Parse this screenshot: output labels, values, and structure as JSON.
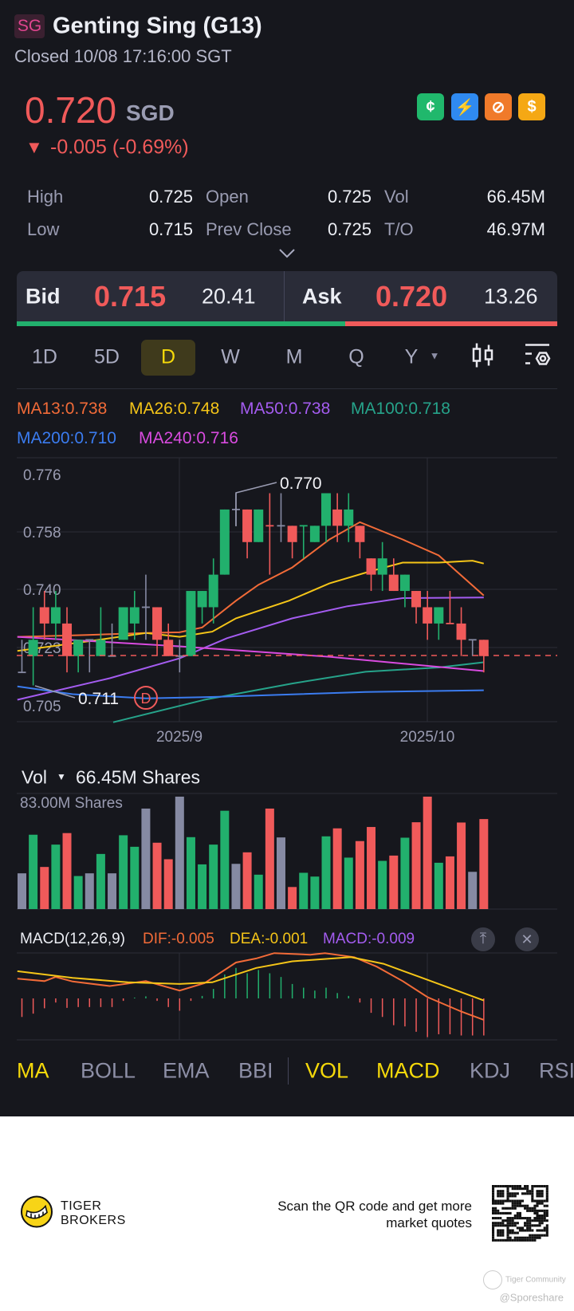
{
  "header": {
    "market_badge": "SG",
    "title": "Genting Sing (G13)",
    "status": "Closed 10/08 17:16:00 SGT"
  },
  "quote": {
    "price": "0.720",
    "currency": "SGD",
    "change_arrow": "▼",
    "change": "-0.005 (-0.69%)",
    "feature_icons": [
      "cash-hand-icon",
      "lightning-1-icon",
      "no-short-icon",
      "dollar-icon"
    ]
  },
  "stats": [
    {
      "label": "High",
      "value": "0.725"
    },
    {
      "label": "Open",
      "value": "0.725"
    },
    {
      "label": "Vol",
      "value": "66.45M"
    },
    {
      "label": "Low",
      "value": "0.715"
    },
    {
      "label": "Prev Close",
      "value": "0.725"
    },
    {
      "label": "T/O",
      "value": "46.97M"
    }
  ],
  "bidask": {
    "bid_label": "Bid",
    "bid_price": "0.715",
    "bid_size": "20.41",
    "ask_label": "Ask",
    "ask_price": "0.720",
    "ask_size": "13.26",
    "bid_share": 0.607
  },
  "timeframes": [
    "1D",
    "5D",
    "D",
    "W",
    "M",
    "Q",
    "Y"
  ],
  "active_timeframe": "D",
  "ma_legend": [
    {
      "text": "MA13:0.738",
      "color": "#f26b38"
    },
    {
      "text": "MA26:0.748",
      "color": "#f5c518"
    },
    {
      "text": "MA50:0.738",
      "color": "#a45cf0"
    },
    {
      "text": "MA100:0.718",
      "color": "#26a38a"
    },
    {
      "text": "MA200:0.710",
      "color": "#3b7cf0"
    },
    {
      "text": "MA240:0.716",
      "color": "#d94be0"
    }
  ],
  "colors": {
    "up": "#22b06d",
    "down": "#f05a5a",
    "flat": "#868aa3"
  },
  "chart_data": [
    {
      "type": "candlestick",
      "ylim": [
        0.7,
        0.781
      ],
      "yticks": [
        {
          "value": 0.7759,
          "label": "0.776"
        },
        {
          "value": 0.7582,
          "label": "0.758"
        },
        {
          "value": 0.7405,
          "label": "0.740"
        },
        {
          "value": 0.7228,
          "label": "0.723"
        },
        {
          "value": 0.7051,
          "label": "0.705"
        }
      ],
      "xticks": [
        {
          "index": 15,
          "label": "2025/9"
        },
        {
          "index": 37,
          "label": "2025/10"
        }
      ],
      "last_price": 0.72,
      "max_label": "0.770",
      "min_label": "0.711",
      "marker_label": "D",
      "candles": [
        [
          0.715,
          0.725,
          0.715,
          0.715,
          "flat"
        ],
        [
          0.72,
          0.735,
          0.711,
          0.725,
          "up"
        ],
        [
          0.735,
          0.74,
          0.725,
          0.73,
          "down"
        ],
        [
          0.73,
          0.74,
          0.725,
          0.735,
          "up"
        ],
        [
          0.73,
          0.735,
          0.715,
          0.72,
          "down"
        ],
        [
          0.72,
          0.725,
          0.715,
          0.725,
          "up"
        ],
        [
          0.725,
          0.725,
          0.715,
          0.725,
          "flat"
        ],
        [
          0.72,
          0.735,
          0.72,
          0.725,
          "up"
        ],
        [
          0.72,
          0.73,
          0.72,
          0.72,
          "flat"
        ],
        [
          0.725,
          0.735,
          0.725,
          0.735,
          "up"
        ],
        [
          0.73,
          0.74,
          0.725,
          0.735,
          "up"
        ],
        [
          0.735,
          0.745,
          0.725,
          0.735,
          "flat"
        ],
        [
          0.735,
          0.735,
          0.72,
          0.725,
          "down"
        ],
        [
          0.725,
          0.73,
          0.72,
          0.72,
          "down"
        ],
        [
          0.72,
          0.725,
          0.715,
          0.72,
          "flat"
        ],
        [
          0.72,
          0.74,
          0.72,
          0.74,
          "up"
        ],
        [
          0.735,
          0.74,
          0.73,
          0.74,
          "up"
        ],
        [
          0.735,
          0.75,
          0.73,
          0.745,
          "up"
        ],
        [
          0.745,
          0.765,
          0.745,
          0.765,
          "up"
        ],
        [
          0.765,
          0.77,
          0.76,
          0.765,
          "flat"
        ],
        [
          0.765,
          0.765,
          0.75,
          0.755,
          "down"
        ],
        [
          0.755,
          0.765,
          0.755,
          0.765,
          "up"
        ],
        [
          0.76,
          0.77,
          0.745,
          0.76,
          "down"
        ],
        [
          0.76,
          0.77,
          0.755,
          0.76,
          "flat"
        ],
        [
          0.76,
          0.76,
          0.75,
          0.755,
          "down"
        ],
        [
          0.76,
          0.76,
          0.75,
          0.76,
          "up"
        ],
        [
          0.755,
          0.76,
          0.755,
          0.76,
          "up"
        ],
        [
          0.76,
          0.77,
          0.755,
          0.77,
          "up"
        ],
        [
          0.765,
          0.77,
          0.755,
          0.76,
          "down"
        ],
        [
          0.76,
          0.77,
          0.755,
          0.765,
          "up"
        ],
        [
          0.76,
          0.76,
          0.75,
          0.755,
          "down"
        ],
        [
          0.75,
          0.75,
          0.74,
          0.745,
          "down"
        ],
        [
          0.745,
          0.755,
          0.74,
          0.75,
          "up"
        ],
        [
          0.745,
          0.75,
          0.74,
          0.74,
          "down"
        ],
        [
          0.74,
          0.745,
          0.735,
          0.745,
          "up"
        ],
        [
          0.74,
          0.74,
          0.73,
          0.735,
          "down"
        ],
        [
          0.735,
          0.74,
          0.725,
          0.73,
          "down"
        ],
        [
          0.73,
          0.735,
          0.725,
          0.735,
          "up"
        ],
        [
          0.73,
          0.74,
          0.73,
          0.73,
          "down"
        ],
        [
          0.73,
          0.735,
          0.72,
          0.725,
          "down"
        ],
        [
          0.725,
          0.725,
          0.72,
          0.725,
          "flat"
        ],
        [
          0.725,
          0.725,
          0.715,
          0.72,
          "down"
        ]
      ],
      "moving_averages": [
        {
          "name": "MA13",
          "points": [
            [
              0.6,
              0.7259
            ],
            [
              6.8,
              0.7265
            ],
            [
              12,
              0.7271
            ],
            [
              15,
              0.7273
            ],
            [
              17,
              0.7288
            ],
            [
              20,
              0.737
            ],
            [
              22,
              0.7419
            ],
            [
              25,
              0.7472
            ],
            [
              28.3,
              0.7558
            ],
            [
              31,
              0.7611
            ],
            [
              34.8,
              0.7558
            ],
            [
              38,
              0.7509
            ],
            [
              42,
              0.7386
            ]
          ]
        },
        {
          "name": "MA26",
          "points": [
            [
              0.6,
              0.7216
            ],
            [
              6.8,
              0.7245
            ],
            [
              12,
              0.7271
            ],
            [
              15,
              0.7259
            ],
            [
              17.9,
              0.7275
            ],
            [
              20,
              0.7316
            ],
            [
              24.7,
              0.737
            ],
            [
              28.3,
              0.7423
            ],
            [
              31.9,
              0.746
            ],
            [
              34.8,
              0.7487
            ],
            [
              38,
              0.7487
            ],
            [
              41,
              0.7493
            ],
            [
              42,
              0.7484
            ]
          ]
        },
        {
          "name": "MA50",
          "points": [
            [
              0.6,
              0.7066
            ],
            [
              8.8,
              0.7132
            ],
            [
              15,
              0.7193
            ],
            [
              19.2,
              0.7255
            ],
            [
              25,
              0.7316
            ],
            [
              29.9,
              0.7353
            ],
            [
              34.8,
              0.7378
            ],
            [
              42,
              0.738
            ]
          ]
        },
        {
          "name": "MA100",
          "points": [
            [
              9.1,
              0.6997
            ],
            [
              17.2,
              0.7066
            ],
            [
              25,
              0.7116
            ],
            [
              31.5,
              0.7152
            ],
            [
              38,
              0.7165
            ],
            [
              42,
              0.7181
            ]
          ]
        },
        {
          "name": "MA200",
          "points": [
            [
              0.6,
              0.7107
            ],
            [
              5.5,
              0.7083
            ],
            [
              12,
              0.707
            ],
            [
              18.5,
              0.7075
            ],
            [
              31.5,
              0.709
            ],
            [
              42,
              0.7095
            ]
          ]
        },
        {
          "name": "MA240",
          "points": [
            [
              0.6,
              0.7259
            ],
            [
              15,
              0.723
            ],
            [
              28.3,
              0.7198
            ],
            [
              42,
              0.7154
            ]
          ]
        }
      ]
    },
    {
      "type": "bar",
      "title": "Vol",
      "value_label": "66.45M Shares",
      "max_label": "83.00M Shares",
      "ylim": [
        0,
        83
      ],
      "unit": "M Shares",
      "values": [
        26.4,
        54.9,
        31.1,
        47.6,
        56.1,
        24.4,
        26.4,
        40.7,
        26.4,
        54.5,
        46.0,
        74.2,
        49.0,
        36.8,
        83.0,
        53.1,
        33.0,
        47.6,
        72.6,
        33.4,
        41.9,
        25.4,
        74.2,
        52.9,
        16.3,
        26.8,
        24.0,
        53.7,
        59.6,
        38.0,
        50.2,
        60.6,
        35.6,
        39.5,
        52.7,
        64.1,
        83.0,
        34.2,
        38.9,
        63.9,
        27.5,
        66.45
      ]
    },
    {
      "type": "macd",
      "title": "MACD(12,26,9)",
      "dif_label": "DIF:-0.005",
      "dea_label": "DEA:-0.001",
      "macd_label": "MACD:-0.009",
      "dif_color": "#f26b38",
      "dea_color": "#f5c518",
      "macd_color": "#a45cf0",
      "ylim": [
        -0.0102,
        0.011
      ],
      "dif": [
        [
          0.6,
          0.0048
        ],
        [
          3,
          0.0042
        ],
        [
          4,
          0.0052
        ],
        [
          5.5,
          0.0041
        ],
        [
          8.8,
          0.003
        ],
        [
          12,
          0.0042
        ],
        [
          15,
          0.0019
        ],
        [
          17.2,
          0.0037
        ],
        [
          20,
          0.0087
        ],
        [
          21.8,
          0.0097
        ],
        [
          23.4,
          0.011
        ],
        [
          26.6,
          0.0106
        ],
        [
          27.9,
          0.011
        ],
        [
          30.5,
          0.01
        ],
        [
          32.5,
          0.0077
        ],
        [
          34.8,
          0.0042
        ],
        [
          37,
          0.0003
        ],
        [
          40,
          -0.0032
        ],
        [
          42,
          -0.0052
        ]
      ],
      "dea": [
        [
          0.6,
          0.0066
        ],
        [
          5.5,
          0.005
        ],
        [
          10.4,
          0.0039
        ],
        [
          15,
          0.0035
        ],
        [
          17.9,
          0.0039
        ],
        [
          21.8,
          0.0074
        ],
        [
          25,
          0.009
        ],
        [
          30.2,
          0.01
        ],
        [
          33.1,
          0.0084
        ],
        [
          36.3,
          0.0052
        ],
        [
          42,
          -0.0005
        ]
      ],
      "histogram": [
        -0.0045,
        -0.0037,
        -0.0024,
        -0.001,
        -0.0023,
        -0.0021,
        -0.0021,
        -0.0021,
        -0.0021,
        -0.0006,
        0.0002,
        0.0005,
        -0.0006,
        -0.0021,
        -0.003,
        -0.0006,
        0.0006,
        0.0023,
        0.0058,
        0.0074,
        0.0061,
        0.0069,
        0.0061,
        0.0052,
        0.0035,
        0.0026,
        0.0019,
        0.0026,
        0.0013,
        0.0006,
        -0.001,
        -0.0035,
        -0.0045,
        -0.0065,
        -0.0068,
        -0.0081,
        -0.0094,
        -0.0087,
        -0.0087,
        -0.009,
        -0.009,
        -0.009
      ]
    }
  ],
  "indicator_tabs": {
    "main": [
      "MA",
      "BOLL",
      "EMA",
      "BBI"
    ],
    "sub": [
      "VOL",
      "MACD",
      "KDJ",
      "RSI"
    ],
    "active": [
      "MA",
      "VOL",
      "MACD"
    ]
  },
  "footer": {
    "brand_line1": "TIGER",
    "brand_line2": "BROKERS",
    "cta_line1": "Scan the QR code and get more",
    "cta_line2": "market quotes",
    "watermark": "Tiger Community",
    "watermark_user": "@Sporeshare"
  }
}
